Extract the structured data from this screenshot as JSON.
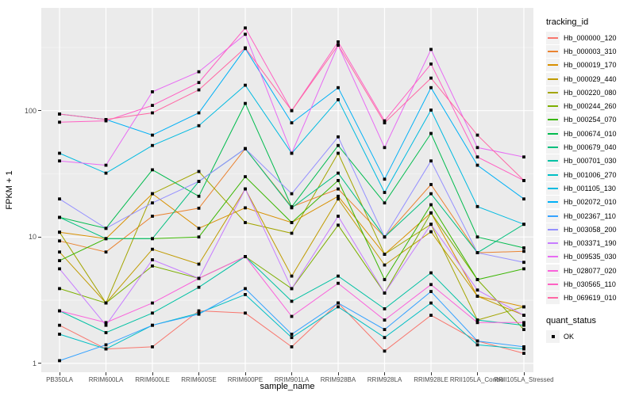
{
  "figure": {
    "ylabel": "FPKM + 1",
    "xlabel": "sample_name"
  },
  "legend": {
    "tracking_title": "tracking_id",
    "quant_title": "quant_status",
    "quant_ok_label": "OK"
  },
  "colors": {
    "panel_bg": "#EBEBEB",
    "grid_major": "#FFFFFF",
    "grid_minor": "#F7F7F7",
    "tick_label": "#4D4D4D",
    "point": "#000000",
    "legend_key_bg": "#F2F2F2"
  },
  "chart_data": {
    "type": "line",
    "title": "",
    "xlabel": "sample_name",
    "ylabel": "FPKM + 1",
    "yscale": "log10",
    "ylim": [
      0.85,
      650
    ],
    "ytick_values": [
      1,
      10,
      100
    ],
    "ytick_labels": [
      "1",
      "10",
      "100"
    ],
    "minor_ytick_values": [
      3.162,
      31.62,
      316.2
    ],
    "grid": true,
    "legend_position": "right",
    "point_shape": "black-square",
    "point_status_label": "OK",
    "x_categories": [
      "PB350LA",
      "RRIM600LA",
      "RRIM600LE",
      "RRIM600SE",
      "RRIM600PE",
      "RRIM901LA",
      "RRIM928BA",
      "RRIM928LA",
      "RRIM928LE",
      "RRII105LA_Control",
      "RRII105LA_Stressed"
    ],
    "series": [
      {
        "name": "Hb_000000_120",
        "color": "#F8766D",
        "values": [
          2.0,
          1.3,
          1.35,
          2.6,
          2.5,
          1.35,
          3.0,
          1.25,
          2.4,
          1.5,
          1.2
        ]
      },
      {
        "name": "Hb_000003_310",
        "color": "#EA8331",
        "values": [
          9.3,
          7.6,
          14.6,
          16.9,
          50,
          17.3,
          24,
          10,
          26,
          7.5,
          7.7
        ]
      },
      {
        "name": "Hb_000019_170",
        "color": "#D89000",
        "values": [
          10.9,
          9.7,
          22,
          11.7,
          17,
          13,
          21,
          7.3,
          15.5,
          3.4,
          2.8
        ]
      },
      {
        "name": "Hb_000029_440",
        "color": "#C09B00",
        "values": [
          7.6,
          3.0,
          8.0,
          6.1,
          24,
          4.9,
          20,
          6.0,
          11,
          3.4,
          2.4
        ]
      },
      {
        "name": "Hb_000220_080",
        "color": "#A3A500",
        "values": [
          10.9,
          3.0,
          22,
          33,
          13,
          10.7,
          46,
          7.3,
          12.6,
          2.2,
          2.8
        ]
      },
      {
        "name": "Hb_000244_260",
        "color": "#7CAE00",
        "values": [
          3.9,
          3.0,
          5.9,
          4.7,
          7.0,
          3.9,
          12.4,
          3.6,
          15.5,
          4.6,
          1.85
        ]
      },
      {
        "name": "Hb_000254_070",
        "color": "#39B600",
        "values": [
          6.5,
          9.7,
          9.7,
          10,
          30,
          13,
          28,
          4.6,
          18,
          4.6,
          5.6
        ]
      },
      {
        "name": "Hb_000674_010",
        "color": "#00BB4E",
        "values": [
          14.3,
          11.7,
          34,
          21,
          114,
          17.3,
          53,
          18.6,
          66,
          10,
          8.2
        ]
      },
      {
        "name": "Hb_000679_040",
        "color": "#00BF7D",
        "values": [
          14.3,
          9.7,
          9.7,
          27.5,
          50,
          17,
          32,
          10,
          22,
          7.5,
          12.6
        ]
      },
      {
        "name": "Hb_000701_030",
        "color": "#00C1A3",
        "values": [
          2.6,
          1.75,
          2.5,
          4.0,
          7.0,
          3.1,
          4.9,
          2.7,
          5.2,
          2.2,
          2.0
        ]
      },
      {
        "name": "Hb_001006_270",
        "color": "#00BFC4",
        "values": [
          1.7,
          1.3,
          2.0,
          2.5,
          3.5,
          1.6,
          2.8,
          1.6,
          3.0,
          1.4,
          1.3
        ]
      },
      {
        "name": "Hb_001105_130",
        "color": "#00BAE0",
        "values": [
          46,
          32,
          53,
          76,
          159,
          46,
          122,
          22.5,
          101,
          17.4,
          12.6
        ]
      },
      {
        "name": "Hb_002072_010",
        "color": "#00B0F6",
        "values": [
          94,
          85,
          64,
          96,
          310,
          80,
          152,
          28.7,
          152,
          37,
          20
        ]
      },
      {
        "name": "Hb_002367_110",
        "color": "#35A2FF",
        "values": [
          1.05,
          1.4,
          2.0,
          2.45,
          3.9,
          1.7,
          3.0,
          1.85,
          3.7,
          1.5,
          1.35
        ]
      },
      {
        "name": "Hb_003058_200",
        "color": "#9590FF",
        "values": [
          20,
          11.7,
          18.6,
          27.5,
          50,
          22,
          62,
          10,
          40,
          7.5,
          6.3
        ]
      },
      {
        "name": "Hb_003371_190",
        "color": "#C77CFF",
        "values": [
          5.6,
          2.0,
          6.6,
          4.7,
          24,
          3.9,
          14.6,
          3.6,
          12.6,
          3.8,
          2.4
        ]
      },
      {
        "name": "Hb_009535_030",
        "color": "#E76BF3",
        "values": [
          40,
          37,
          141,
          203,
          402,
          46,
          330,
          51,
          305,
          51,
          43
        ]
      },
      {
        "name": "Hb_028077_020",
        "color": "#FA62DB",
        "values": [
          2.6,
          2.1,
          3.0,
          4.7,
          7.0,
          2.35,
          4.3,
          2.2,
          4.2,
          2.1,
          2.1
        ]
      },
      {
        "name": "Hb_030565_110",
        "color": "#FF61C3",
        "values": [
          81,
          83,
          110,
          167,
          451,
          100,
          350,
          83,
          234,
          43,
          28
        ]
      },
      {
        "name": "Hb_069619_010",
        "color": "#FF67A4",
        "values": [
          94,
          85,
          96,
          146,
          314,
          100,
          330,
          80,
          181,
          64,
          28
        ]
      }
    ]
  }
}
